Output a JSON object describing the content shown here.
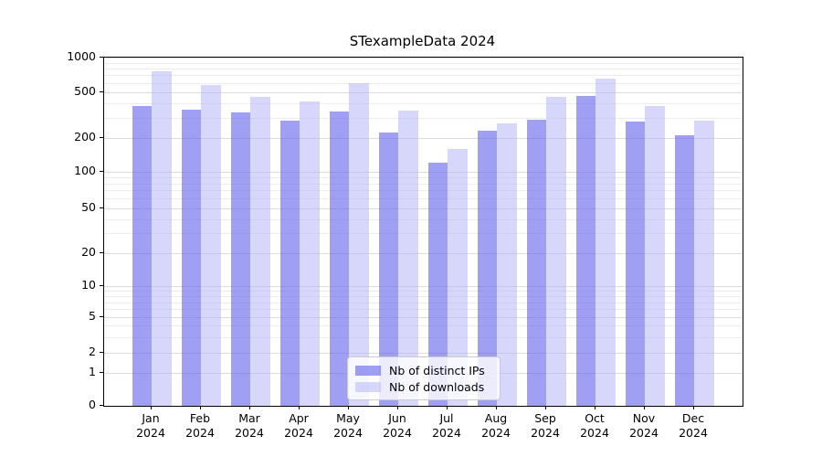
{
  "title": "STexampleData 2024",
  "colors": {
    "ips_bar": "rgba(100,100,235,0.62)",
    "downloads_bar": "rgba(175,175,250,0.5)",
    "ips_bar_hex": "#a0a0f2",
    "downloads_bar_hex": "#d7d7fa",
    "grid_major": "#dcdcdc",
    "grid_minor": "#ececec"
  },
  "legend": {
    "items": [
      {
        "label": "Nb of distinct IPs"
      },
      {
        "label": "Nb of downloads"
      }
    ]
  },
  "chart_data": {
    "type": "bar",
    "title": "STexampleData 2024",
    "categories": [
      "Jan 2024",
      "Feb 2024",
      "Mar 2024",
      "Apr 2024",
      "May 2024",
      "Jun 2024",
      "Jul 2024",
      "Aug 2024",
      "Sep 2024",
      "Oct 2024",
      "Nov 2024",
      "Dec 2024"
    ],
    "series": [
      {
        "name": "Nb of distinct IPs",
        "color": "rgba(100,100,235,0.62)",
        "values": [
          380,
          350,
          335,
          285,
          340,
          222,
          121,
          233,
          290,
          465,
          280,
          210
        ]
      },
      {
        "name": "Nb of downloads",
        "color": "rgba(175,175,250,0.5)",
        "values": [
          755,
          580,
          450,
          410,
          600,
          343,
          161,
          270,
          455,
          660,
          380,
          282
        ]
      }
    ],
    "xlabel": "",
    "ylabel": "",
    "yscale": "symlog-like",
    "y_ticks": [
      1000,
      500,
      200,
      100,
      50,
      20,
      10,
      5,
      2,
      1,
      0
    ],
    "ylim": [
      0,
      1000
    ],
    "grid": true,
    "legend_position": "lower center"
  }
}
